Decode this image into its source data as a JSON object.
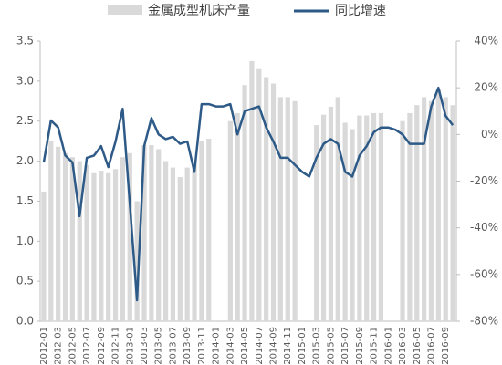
{
  "chart_data": {
    "type": "bar_line",
    "categories": [
      "2012-01",
      null,
      "2012-03",
      null,
      "2012-05",
      null,
      "2012-07",
      null,
      "2012-09",
      null,
      "2012-11",
      null,
      "2013-01",
      null,
      "2013-03",
      null,
      "2013-05",
      null,
      "2013-07",
      null,
      "2013-09",
      null,
      "2013-11",
      null,
      "2014-01",
      null,
      "2014-03",
      null,
      "2014-05",
      null,
      "2014-07",
      null,
      "2014-09",
      null,
      "2014-11",
      null,
      "2015-01",
      null,
      "2015-03",
      null,
      "2015-05",
      null,
      "2015-07",
      null,
      "2015-09",
      null,
      "2015-11",
      null,
      "2016-01",
      null,
      "2016-03",
      null,
      "2016-05",
      null,
      "2016-07",
      null,
      "2016-09",
      null
    ],
    "series": [
      {
        "name": "金属成型机床产量",
        "color": "#d9d9d9",
        "kind": "bar",
        "values": [
          1.62,
          2.25,
          2.18,
          2.1,
          2.05,
          2.0,
          1.95,
          1.85,
          1.88,
          1.85,
          1.9,
          2.05,
          2.1,
          1.5,
          2.2,
          2.2,
          2.15,
          2.0,
          1.92,
          1.8,
          1.92,
          2.0,
          2.25,
          2.28,
          null,
          null,
          2.5,
          2.6,
          2.95,
          3.25,
          3.15,
          3.05,
          2.97,
          2.8,
          2.8,
          2.75,
          null,
          null,
          2.45,
          2.58,
          2.68,
          2.8,
          2.48,
          2.4,
          2.57,
          2.57,
          2.6,
          2.6,
          null,
          null,
          2.5,
          2.6,
          2.7,
          2.8,
          2.75,
          2.9,
          2.8,
          2.7
        ]
      },
      {
        "name": "同比增速",
        "color": "#2e5a88",
        "kind": "line",
        "axis": "y2",
        "values": [
          -12,
          6,
          3,
          -9,
          -12,
          -35,
          -10,
          -9,
          -5,
          -14,
          -3,
          11,
          -30,
          -71,
          -5,
          7,
          0,
          -2,
          -1,
          -4,
          -3,
          -16,
          13,
          13,
          12,
          12,
          13,
          0,
          10,
          11,
          12,
          3,
          -3,
          -10,
          -10,
          -13,
          -16,
          -18,
          -10,
          -4,
          -2,
          -4,
          -16,
          -18,
          -9,
          -5,
          1,
          3,
          3,
          2,
          0,
          -4,
          -4,
          -4,
          12,
          20,
          8,
          4
        ]
      }
    ],
    "ylim": [
      0,
      3.5
    ],
    "yticks": [
      {
        "value": 0,
        "label": "0.0"
      },
      {
        "value": 0.5,
        "label": "0.5"
      },
      {
        "value": 1,
        "label": "1.0"
      },
      {
        "value": 1.5,
        "label": "1.5"
      },
      {
        "value": 2,
        "label": "2.0"
      },
      {
        "value": 2.5,
        "label": "2.5"
      },
      {
        "value": 3,
        "label": "3.0"
      },
      {
        "value": 3.5,
        "label": "3.5"
      }
    ],
    "y2lim": [
      -80,
      40
    ],
    "y2ticks": [
      {
        "value": -80,
        "label": "-80%"
      },
      {
        "value": -60,
        "label": "-60%"
      },
      {
        "value": -40,
        "label": "-40%"
      },
      {
        "value": -20,
        "label": "-20%"
      },
      {
        "value": 0,
        "label": "0%"
      },
      {
        "value": 20,
        "label": "20%"
      },
      {
        "value": 40,
        "label": "40%"
      }
    ]
  }
}
